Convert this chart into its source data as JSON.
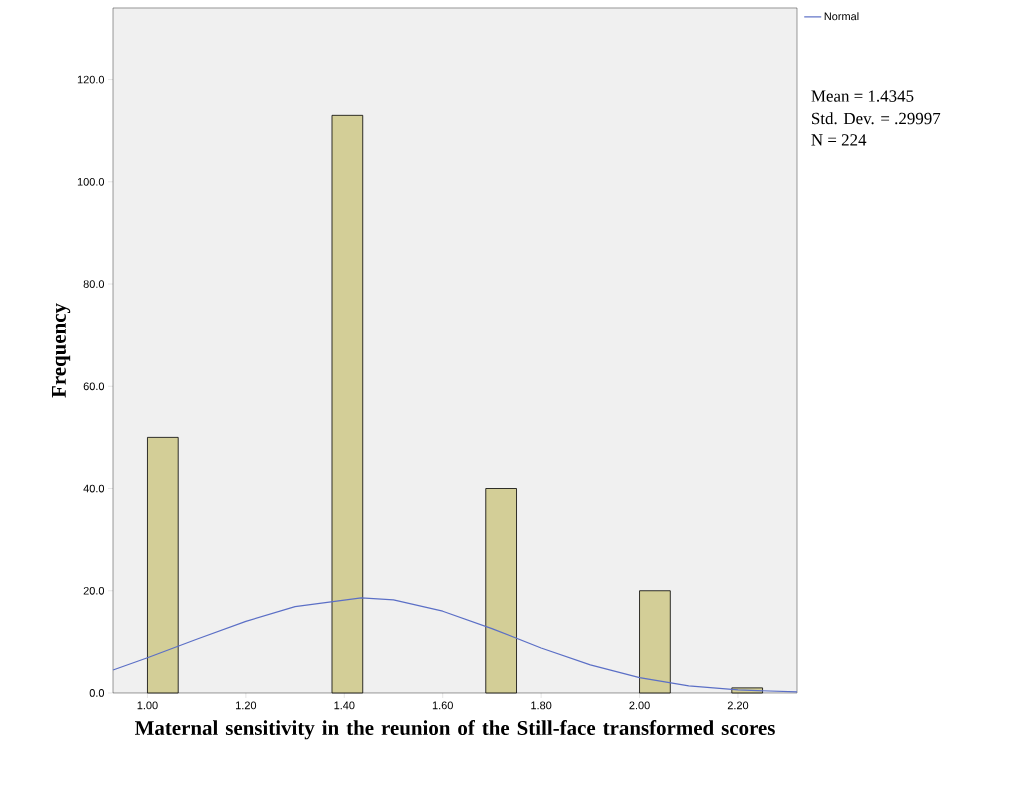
{
  "chart_data": {
    "type": "histogram",
    "xlabel": "Maternal sensitivity in the reunion of the Still-face transformed scores",
    "ylabel": "Frequency",
    "annotations": [
      "Mean = 1.4345",
      "Std. Dev. = .29997",
      "N = 224"
    ],
    "series": [
      {
        "type": "histogram",
        "color": "#d3ce97",
        "bins": [
          1.0,
          1.0625,
          1.125,
          1.1875,
          1.25,
          1.3125,
          1.375,
          1.4375,
          1.5,
          1.5625,
          1.625,
          1.6875,
          1.75,
          1.8125,
          1.875,
          1.9375,
          2.0,
          2.0625,
          2.125,
          2.1875,
          2.25
        ],
        "values": [
          50,
          0,
          0,
          0,
          0,
          0,
          113,
          0,
          0,
          0,
          0,
          40,
          0,
          0,
          0,
          0,
          20,
          0,
          0,
          1
        ]
      },
      {
        "type": "line",
        "name": "Normal",
        "color": "#5b6fc6",
        "x": [
          0.93,
          1.0,
          1.1,
          1.2,
          1.3,
          1.4345,
          1.5,
          1.6,
          1.7,
          1.8,
          1.9,
          2.0,
          2.1,
          2.2,
          2.32
        ],
        "values": [
          4.5,
          6.9,
          10.5,
          14.0,
          16.9,
          18.6,
          18.2,
          16.0,
          12.6,
          8.8,
          5.5,
          3.0,
          1.4,
          0.6,
          0.2
        ]
      }
    ],
    "xlim": [
      0.93,
      2.32
    ],
    "ylim": [
      0,
      134
    ],
    "xticks": [
      {
        "value": 1.0,
        "label": "1.00"
      },
      {
        "value": 1.2,
        "label": "1.20"
      },
      {
        "value": 1.4,
        "label": "1.40"
      },
      {
        "value": 1.6,
        "label": "1.60"
      },
      {
        "value": 1.8,
        "label": "1.80"
      },
      {
        "value": 2.0,
        "label": "2.00"
      },
      {
        "value": 2.2,
        "label": "2.20"
      }
    ],
    "yticks": [
      {
        "value": 0,
        "label": "0.0"
      },
      {
        "value": 20,
        "label": "20.0"
      },
      {
        "value": 40,
        "label": "40.0"
      },
      {
        "value": 60,
        "label": "60.0"
      },
      {
        "value": 80,
        "label": "80.0"
      },
      {
        "value": 100,
        "label": "100.0"
      },
      {
        "value": 120,
        "label": "120.0"
      }
    ],
    "grid": false,
    "legend": "top right"
  }
}
